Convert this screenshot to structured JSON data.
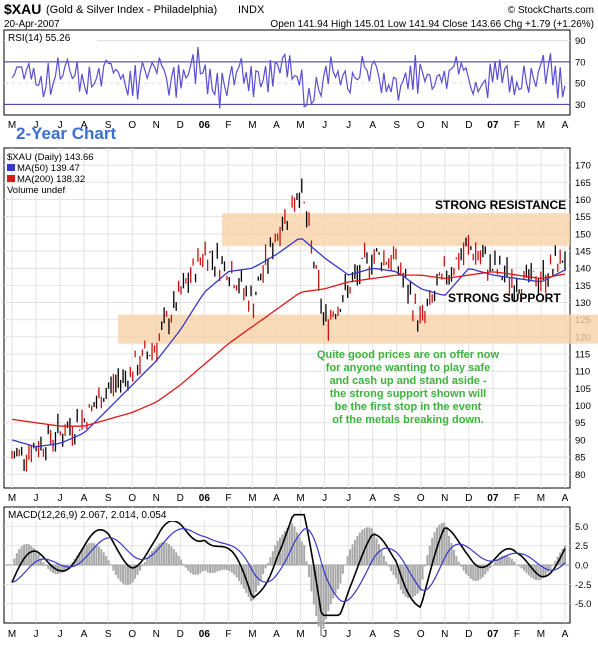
{
  "header": {
    "symbol": "$XAU",
    "name": "(Gold & Silver Index - Philadelphia)",
    "exchange": "INDX",
    "date": "20-Apr-2007",
    "source": "© StockCharts.com",
    "quote": "Open 141.94  High 145.01  Low 141.94  Close 143.66  Chg +1.79 (+1.26%)"
  },
  "months": [
    "M",
    "J",
    "J",
    "A",
    "S",
    "O",
    "N",
    "D",
    "06",
    "F",
    "M",
    "A",
    "M",
    "J",
    "J",
    "A",
    "S",
    "O",
    "N",
    "D",
    "07",
    "F",
    "M",
    "A"
  ],
  "rsi": {
    "label": "RSI(14) 55.26",
    "ticks": [
      90,
      70,
      50,
      30
    ],
    "ylim": [
      20,
      100
    ],
    "color": "#5a4fd0"
  },
  "price": {
    "chart_title": "2-Year Chart",
    "legend": [
      {
        "text": "$XAU (Daily) 143.66",
        "color": "#000000"
      },
      {
        "text": "MA(50) 139.47",
        "color": "#3737c8"
      },
      {
        "text": "MA(200) 138.32",
        "color": "#e01818"
      },
      {
        "text": "Volume undef",
        "color": "#000000"
      }
    ],
    "ticks": [
      170,
      165,
      160,
      155,
      150,
      145,
      140,
      135,
      130,
      125,
      120,
      115,
      110,
      105,
      100,
      95,
      90,
      85,
      80
    ],
    "resistance_label": "STRONG RESISTANCE",
    "support_label": "STRONG SUPPORT",
    "zone_color": "#f7d2a8",
    "resistance_zone": [
      146.5,
      156
    ],
    "support_zone": [
      118,
      126.5
    ],
    "annotation": [
      "Quite good prices are on offer now",
      "for anyone wanting to play safe",
      "and cash up and stand aside -",
      "the strong support shown will",
      "be the first stop in the event",
      "of the metals breaking down."
    ],
    "annotation_color": "#3cb43c"
  },
  "macd": {
    "label": "MACD(12,26,9) 2.067, 2.014, 0.054",
    "ticks": [
      5.0,
      2.5,
      0.0,
      -2.5,
      -5.0
    ],
    "ticks_text": [
      "5.0",
      "2.5",
      "0.0",
      "-2.5",
      "-5.0"
    ],
    "ylim": [
      -7.5,
      7.5
    ],
    "signal_color": "#3737c8"
  },
  "chart_data": {
    "type": "line",
    "x": [
      "2005-05",
      "2005-06",
      "2005-07",
      "2005-08",
      "2005-09",
      "2005-10",
      "2005-11",
      "2005-12",
      "2006-01",
      "2006-02",
      "2006-03",
      "2006-04",
      "2006-05",
      "2006-06",
      "2006-07",
      "2006-08",
      "2006-09",
      "2006-10",
      "2006-11",
      "2006-12",
      "2007-01",
      "2007-02",
      "2007-03",
      "2007-04"
    ],
    "series": [
      {
        "name": "$XAU (Daily)",
        "values": [
          85,
          88,
          92,
          96,
          105,
          110,
          118,
          132,
          145,
          140,
          130,
          150,
          164,
          124,
          134,
          144,
          142,
          124,
          138,
          146,
          140,
          136,
          137,
          143.66
        ]
      },
      {
        "name": "MA(50)",
        "values": [
          90,
          88,
          89,
          92,
          99,
          106,
          113,
          122,
          133,
          139,
          140,
          144,
          149,
          143,
          138,
          140,
          139,
          134,
          132,
          140,
          138,
          137,
          136,
          139.47
        ]
      },
      {
        "name": "MA(200)",
        "values": [
          96,
          95,
          94,
          94,
          96,
          98,
          101,
          106,
          112,
          118,
          123,
          128,
          133,
          134,
          136,
          137,
          138,
          138,
          137,
          138,
          139,
          138,
          137,
          138.32
        ]
      }
    ],
    "ylim": [
      76,
      175
    ]
  }
}
